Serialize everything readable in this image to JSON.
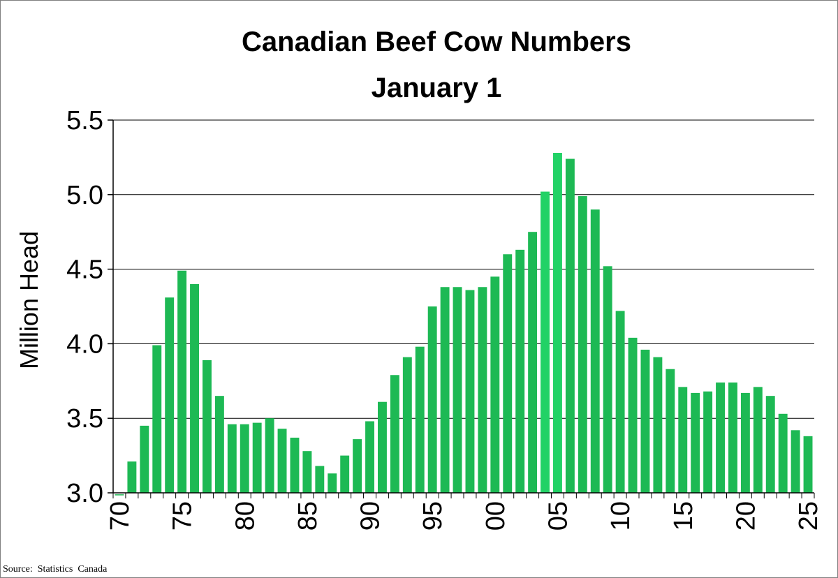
{
  "chart_data": {
    "type": "bar",
    "title": "Canadian Beef Cow Numbers",
    "subtitle": "January 1",
    "ylabel": "Million Head",
    "xlabel": "",
    "ylim": [
      3.0,
      5.5
    ],
    "yticks": [
      "3.0",
      "3.5",
      "4.0",
      "4.5",
      "5.0",
      "5.5"
    ],
    "ytick_values": [
      3.0,
      3.5,
      4.0,
      4.5,
      5.0,
      5.5
    ],
    "xtick_labels": [
      "70",
      "75",
      "80",
      "85",
      "90",
      "95",
      "00",
      "05",
      "10",
      "15",
      "20",
      "25"
    ],
    "grid": "horizontal",
    "bar_color": "#1db954",
    "highlight_color": "#22d266",
    "source": "Source:  Statistics  Canada",
    "categories": [
      "1970",
      "1971",
      "1972",
      "1973",
      "1974",
      "1975",
      "1976",
      "1977",
      "1978",
      "1979",
      "1980",
      "1981",
      "1982",
      "1983",
      "1984",
      "1985",
      "1986",
      "1987",
      "1988",
      "1989",
      "1990",
      "1991",
      "1992",
      "1993",
      "1994",
      "1995",
      "1996",
      "1997",
      "1998",
      "1999",
      "2000",
      "2001",
      "2002",
      "2003",
      "2004",
      "2005",
      "2006",
      "2007",
      "2008",
      "2009",
      "2010",
      "2011",
      "2012",
      "2013",
      "2014",
      "2015",
      "2016",
      "2017",
      "2018",
      "2019",
      "2020",
      "2021",
      "2022",
      "2023",
      "2024",
      "2025"
    ],
    "values": [
      2.99,
      3.21,
      3.45,
      3.99,
      4.31,
      4.49,
      4.4,
      3.89,
      3.65,
      3.46,
      3.46,
      3.47,
      3.5,
      3.43,
      3.37,
      3.28,
      3.18,
      3.13,
      3.25,
      3.36,
      3.48,
      3.61,
      3.79,
      3.91,
      3.98,
      4.25,
      4.38,
      4.38,
      4.36,
      4.38,
      4.45,
      4.6,
      4.63,
      4.75,
      5.02,
      5.28,
      5.24,
      4.99,
      4.9,
      4.52,
      4.22,
      4.04,
      3.96,
      3.91,
      3.83,
      3.71,
      3.67,
      3.68,
      3.74,
      3.74,
      3.67,
      3.71,
      3.65,
      3.53,
      3.42,
      3.38
    ],
    "highlighted": [
      "2004",
      "2005"
    ]
  }
}
